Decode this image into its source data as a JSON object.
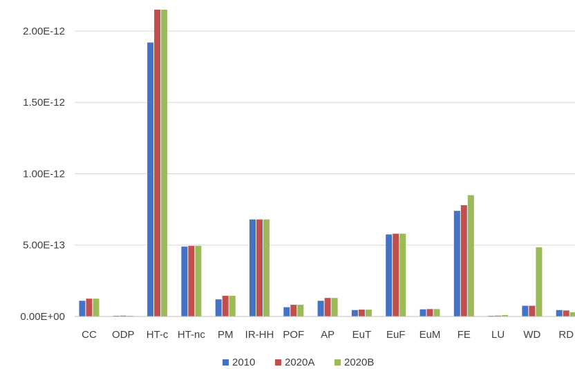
{
  "chart_data": {
    "type": "bar",
    "title": "",
    "xlabel": "",
    "ylabel": "",
    "ylim": [
      0,
      2.15e-12
    ],
    "y_ticks": [
      0,
      5e-13,
      1e-12,
      1.5e-12,
      2e-12
    ],
    "y_tick_labels": [
      "0.00E+00",
      "5.00E-13",
      "1.00E-12",
      "1.50E-12",
      "2.00E-12"
    ],
    "grid": true,
    "legend_position": "bottom",
    "categories": [
      "CC",
      "ODP",
      "HT-c",
      "HT-nc",
      "PM",
      "IR-HH",
      "POF",
      "AP",
      "EuT",
      "EuF",
      "EuM",
      "FE",
      "LU",
      "WD",
      "RD"
    ],
    "series": [
      {
        "name": "2010",
        "color": "#4472c4",
        "values": [
          1.1e-13,
          5e-15,
          1.92e-12,
          4.9e-13,
          1.2e-13,
          6.8e-13,
          6.5e-14,
          1.1e-13,
          4.5e-14,
          5.75e-13,
          5e-14,
          7.4e-13,
          5e-15,
          7.5e-14,
          4.5e-14
        ]
      },
      {
        "name": "2020A",
        "color": "#c0504d",
        "values": [
          1.25e-13,
          6e-15,
          2.15e-12,
          4.95e-13,
          1.45e-13,
          6.8e-13,
          8.2e-14,
          1.3e-13,
          4.8e-14,
          5.8e-13,
          5.2e-14,
          7.8e-13,
          6e-15,
          7.5e-14,
          4.2e-14
        ]
      },
      {
        "name": "2020B",
        "color": "#9bbb59",
        "values": [
          1.25e-13,
          5e-15,
          2.15e-12,
          4.95e-13,
          1.45e-13,
          6.8e-13,
          8.2e-14,
          1.3e-13,
          4.8e-14,
          5.8e-13,
          5.2e-14,
          8.5e-13,
          1e-14,
          4.85e-13,
          3e-14
        ]
      }
    ]
  }
}
